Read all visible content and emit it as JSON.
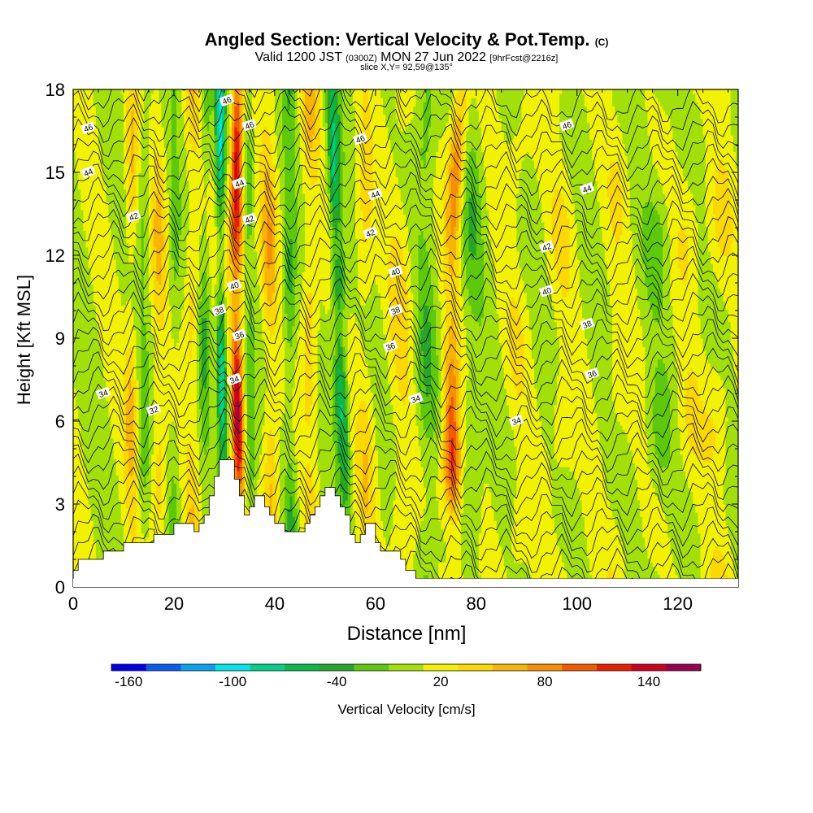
{
  "header": {
    "title": "Angled Section: Vertical Velocity & Pot.Temp.",
    "title_units": "(C)",
    "valid_prefix": "Valid 1200 JST",
    "valid_zulu": "(0300Z)",
    "valid_date": "MON 27 Jun 2022",
    "forecast": "[9hrFcst@2216z]",
    "slice": "slice X,Y= 92,59@135°"
  },
  "chart_data": {
    "type": "heatmap",
    "xlabel": "Distance [nm]",
    "ylabel": "Height [Kft MSL]",
    "xlim": [
      0,
      132
    ],
    "ylim": [
      0,
      18
    ],
    "xticks": [
      "0",
      "20",
      "40",
      "60",
      "80",
      "100",
      "120"
    ],
    "yticks": [
      "0",
      "3",
      "6",
      "9",
      "12",
      "15",
      "18"
    ],
    "field": "Vertical Velocity",
    "colorbar": {
      "label": "Vertical Velocity [cm/s]",
      "tick_labels": [
        "-160",
        "-100",
        "-40",
        "20",
        "80",
        "140"
      ],
      "tick_values": [
        -160,
        -100,
        -40,
        20,
        80,
        140
      ],
      "levels": [
        -170,
        -150,
        -130,
        -110,
        -90,
        -70,
        -50,
        -30,
        -10,
        10,
        30,
        50,
        70,
        90,
        110,
        130,
        150,
        170
      ],
      "colors": [
        "#0000e6",
        "#0b5cf0",
        "#0aa0f0",
        "#00e6e6",
        "#00d08a",
        "#08b84a",
        "#27a52a",
        "#5ec80a",
        "#a3e00a",
        "#f2f200",
        "#fad800",
        "#f7b400",
        "#f58e00",
        "#f05a00",
        "#e61e00",
        "#cc0020",
        "#960050",
        "#5a0090"
      ]
    },
    "terrain": {
      "x": [
        0,
        1,
        5,
        6,
        9,
        10,
        15,
        16,
        19,
        20,
        21,
        22,
        23,
        24,
        25,
        26,
        27,
        28,
        29,
        31,
        32,
        33,
        34,
        35,
        36,
        37,
        38,
        39,
        40,
        41,
        42,
        43,
        44,
        45,
        46,
        47,
        48,
        49,
        50,
        51,
        52,
        53,
        54,
        55,
        56,
        57,
        58,
        59,
        60,
        61,
        62,
        63,
        64,
        65,
        66,
        67,
        68,
        70,
        72,
        73
      ],
      "height": [
        0.6,
        1.0,
        1.0,
        1.3,
        1.3,
        1.6,
        1.6,
        1.9,
        1.9,
        2.3,
        2.3,
        2.3,
        2.3,
        2.0,
        2.3,
        2.6,
        3.3,
        4.0,
        4.6,
        4.6,
        3.9,
        3.3,
        2.6,
        2.9,
        3.3,
        3.3,
        2.9,
        2.6,
        2.3,
        2.3,
        2.0,
        2.0,
        2.0,
        2.0,
        2.3,
        2.6,
        2.9,
        3.3,
        3.6,
        3.6,
        3.3,
        2.9,
        2.6,
        1.9,
        1.6,
        1.9,
        2.3,
        2.3,
        1.6,
        1.3,
        1.3,
        1.3,
        1.3,
        1.0,
        0.6,
        0.6,
        0.3,
        0.3,
        0.3,
        0.3
      ]
    },
    "pot_temp_labels": [
      {
        "x": 3,
        "y": 16.6,
        "text": "46"
      },
      {
        "x": 3,
        "y": 15.0,
        "text": "44"
      },
      {
        "x": 12,
        "y": 13.4,
        "text": "42"
      },
      {
        "x": 6,
        "y": 7.0,
        "text": "34"
      },
      {
        "x": 16,
        "y": 6.4,
        "text": "32"
      },
      {
        "x": 30.5,
        "y": 17.6,
        "text": "46"
      },
      {
        "x": 35,
        "y": 16.7,
        "text": "46"
      },
      {
        "x": 33,
        "y": 14.6,
        "text": "44"
      },
      {
        "x": 35,
        "y": 13.3,
        "text": "42"
      },
      {
        "x": 32,
        "y": 10.9,
        "text": "40"
      },
      {
        "x": 29,
        "y": 10.0,
        "text": "38"
      },
      {
        "x": 33,
        "y": 9.1,
        "text": "36"
      },
      {
        "x": 32,
        "y": 7.5,
        "text": "34"
      },
      {
        "x": 57,
        "y": 16.2,
        "text": "46"
      },
      {
        "x": 60,
        "y": 14.2,
        "text": "44"
      },
      {
        "x": 59,
        "y": 12.8,
        "text": "42"
      },
      {
        "x": 64,
        "y": 11.4,
        "text": "40"
      },
      {
        "x": 64,
        "y": 10.0,
        "text": "38"
      },
      {
        "x": 63,
        "y": 8.7,
        "text": "36"
      },
      {
        "x": 68,
        "y": 6.8,
        "text": "34"
      },
      {
        "x": 98,
        "y": 16.7,
        "text": "46"
      },
      {
        "x": 102,
        "y": 14.4,
        "text": "44"
      },
      {
        "x": 94,
        "y": 12.3,
        "text": "42"
      },
      {
        "x": 94,
        "y": 10.7,
        "text": "40"
      },
      {
        "x": 102,
        "y": 9.5,
        "text": "38"
      },
      {
        "x": 103,
        "y": 7.7,
        "text": "36"
      },
      {
        "x": 88,
        "y": 6.0,
        "text": "34"
      }
    ]
  }
}
